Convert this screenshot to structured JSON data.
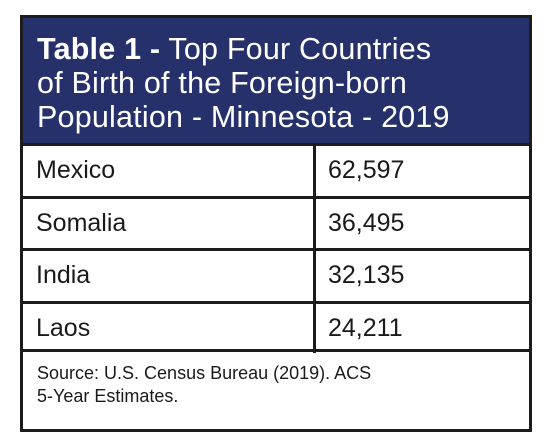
{
  "table": {
    "title_bold": "Table 1 -",
    "title_line1": "Top Four Countries",
    "title_line2": "of Birth of the Foreign-born",
    "title_line3": "Population - Minnesota - 2019",
    "rows": [
      {
        "country": "Mexico",
        "value": "62,597"
      },
      {
        "country": "Somalia",
        "value": "36,495"
      },
      {
        "country": "India",
        "value": "32,135"
      },
      {
        "country": "Laos",
        "value": "24,211"
      }
    ],
    "source_line1": "Source: U.S. Census Bureau (2019). ACS",
    "source_line2": "5-Year Estimates."
  },
  "colors": {
    "header_background": "#26306b",
    "header_text": "#ffffff",
    "border": "#1c1c1c"
  }
}
